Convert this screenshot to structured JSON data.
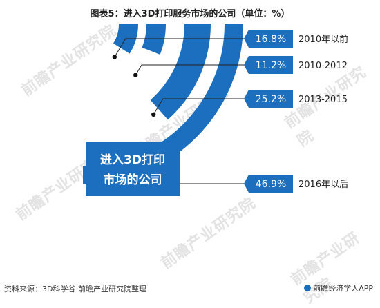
{
  "title": "图表5：进入3D打印服务市场的公司（单位：%）",
  "center_label": [
    "进入3D打印",
    "市场的公司"
  ],
  "source": "资料来源：3D科学谷 前瞻产业研究院整理",
  "logo_text": "前瞻经济学人APP",
  "watermark": "前瞻产业研究院",
  "colors": {
    "ring": "#1b6fbe",
    "label_box": "#1b6fbe",
    "line": "#222222"
  },
  "chart_data": {
    "type": "pie",
    "categories": [
      "2010年以前",
      "2010-2012",
      "2013-2015",
      "2016年以后"
    ],
    "values": [
      16.8,
      11.2,
      25.2,
      46.9
    ],
    "value_labels": [
      "16.8%",
      "11.2%",
      "25.2%",
      "46.9%"
    ],
    "unit": "%"
  }
}
